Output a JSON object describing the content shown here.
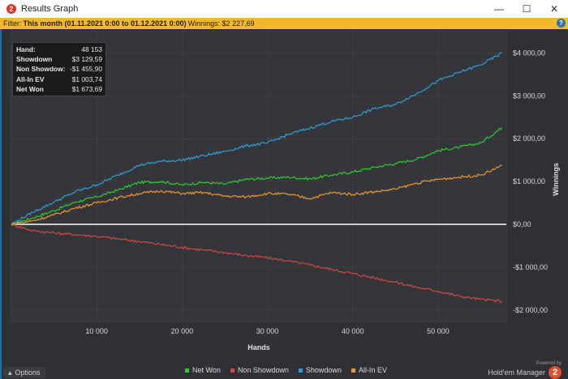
{
  "window": {
    "title": "Results Graph",
    "app_icon_label": "2",
    "controls": [
      "—",
      "☐",
      "✕"
    ]
  },
  "filter": {
    "label": "Filter:",
    "period": "This month (01.11.2021 0:00 to 01.12.2021 0:00)",
    "winnings_text": "Winnings: $2 227,69",
    "help_label": "?"
  },
  "stats": [
    {
      "label": "Hand:",
      "value": "48 153"
    },
    {
      "label": "Showdown",
      "value": "$3 129,59"
    },
    {
      "label": "Non Showdow:",
      "value": "-$1 455,90"
    },
    {
      "label": "All-In EV",
      "value": "$1 003,74"
    },
    {
      "label": "Net Won",
      "value": "$1 673,69"
    }
  ],
  "chart_data": {
    "type": "line",
    "xlabel": "Hands",
    "ylabel": "Winnings",
    "xlim": [
      0,
      58000
    ],
    "ylim": [
      -2250,
      4500
    ],
    "x_ticks": [
      10000,
      20000,
      30000,
      40000,
      50000
    ],
    "x_tick_labels": [
      "10 000",
      "20 000",
      "30 000",
      "40 000",
      "50 000"
    ],
    "y_ticks": [
      -2000,
      -1000,
      0,
      1000,
      2000,
      3000,
      4000
    ],
    "y_tick_labels": [
      "-$2 000,00",
      "-$1 000,00",
      "$0,00",
      "$1 000,00",
      "$2 000,00",
      "$3 000,00",
      "$4 000,00"
    ],
    "grid": true,
    "legend_position": "bottom",
    "x": [
      0,
      2500,
      5000,
      7500,
      10000,
      12500,
      15000,
      17500,
      20000,
      22500,
      25000,
      27500,
      30000,
      32500,
      35000,
      37500,
      40000,
      42500,
      45000,
      47500,
      50000,
      52500,
      55000,
      57500
    ],
    "series": [
      {
        "name": "Net Won",
        "color": "#2ecc2e",
        "values": [
          0,
          150,
          320,
          520,
          640,
          800,
          980,
          1000,
          920,
          980,
          940,
          1050,
          1080,
          1100,
          1060,
          1150,
          1220,
          1330,
          1420,
          1520,
          1720,
          1800,
          1900,
          2260
        ]
      },
      {
        "name": "Non Showdown",
        "color": "#d9463f",
        "values": [
          0,
          -150,
          -200,
          -240,
          -280,
          -340,
          -400,
          -470,
          -540,
          -600,
          -660,
          -730,
          -780,
          -860,
          -950,
          -1050,
          -1150,
          -1250,
          -1350,
          -1470,
          -1560,
          -1680,
          -1750,
          -1800
        ]
      },
      {
        "name": "Showdown",
        "color": "#2f9ed8",
        "values": [
          0,
          280,
          520,
          760,
          920,
          1150,
          1380,
          1470,
          1500,
          1600,
          1700,
          1830,
          1900,
          2100,
          2250,
          2400,
          2500,
          2700,
          2800,
          3050,
          3350,
          3550,
          3720,
          4000
        ]
      },
      {
        "name": "All-In EV",
        "color": "#f0962a",
        "values": [
          0,
          80,
          220,
          380,
          500,
          620,
          720,
          780,
          720,
          740,
          660,
          640,
          720,
          700,
          600,
          740,
          700,
          760,
          820,
          960,
          1050,
          1100,
          1150,
          1370
        ]
      }
    ]
  },
  "options_label": "Options",
  "brand": {
    "powered": "Powered by",
    "name": "Hold'em Manager",
    "logo_label": "2"
  }
}
